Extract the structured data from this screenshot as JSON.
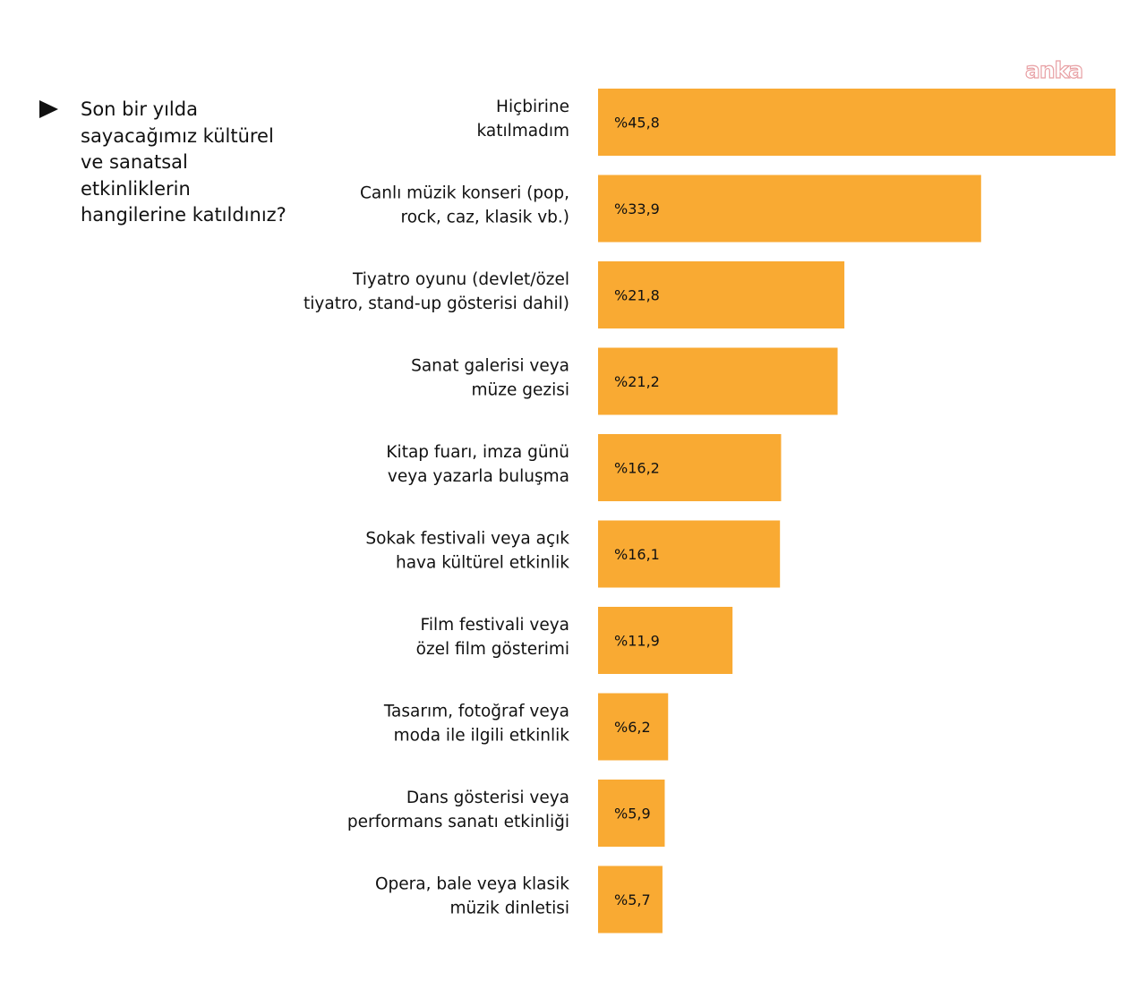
{
  "question": "Son bir yılda sayacağımız kültürel ve sanatsal etkinliklerin hangilerine katıldınız?",
  "logo": "anka",
  "colors": {
    "bar": "#f9aa33",
    "logo_outline": "#e8a0a4",
    "text": "#111111"
  },
  "chart_data": {
    "type": "bar",
    "orientation": "horizontal",
    "title": "",
    "xlabel": "",
    "ylabel": "",
    "grid": false,
    "xlim": [
      0,
      45.8
    ],
    "categories": [
      [
        "Hiçbirine",
        "katılmadım"
      ],
      [
        "Canlı müzik konseri (pop,",
        "rock, caz, klasik vb.)"
      ],
      [
        "Tiyatro oyunu (devlet/özel",
        "tiyatro, stand-up gösterisi dahil)"
      ],
      [
        "Sanat galerisi veya",
        "müze gezisi"
      ],
      [
        "Kitap fuarı, imza günü",
        "veya yazarla buluşma"
      ],
      [
        "Sokak festivali veya açık",
        "hava kültürel etkinlik"
      ],
      [
        "Film festivali veya",
        "özel film gösterimi"
      ],
      [
        "Tasarım, fotoğraf veya",
        "moda ile ilgili etkinlik"
      ],
      [
        "Dans gösterisi veya",
        "performans sanatı etkinliği"
      ],
      [
        "Opera, bale veya klasik",
        "müzik dinletisi"
      ]
    ],
    "values": [
      45.8,
      33.9,
      21.8,
      21.2,
      16.2,
      16.1,
      11.9,
      6.2,
      5.9,
      5.7
    ],
    "value_labels": [
      "%45,8",
      "%33,9",
      "%21,8",
      "%21,2",
      "%16,2",
      "%16,1",
      "%11,9",
      "%6,2",
      "%5,9",
      "%5,7"
    ]
  }
}
